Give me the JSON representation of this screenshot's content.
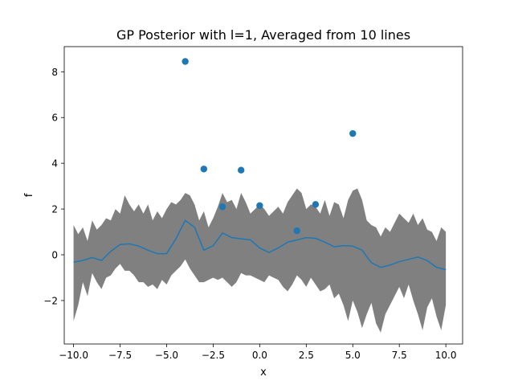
{
  "chart_data": {
    "type": "line",
    "title": "GP Posterior with l=1, Averaged from 10 lines",
    "xlabel": "x",
    "ylabel": "f",
    "xlim": [
      -10.5,
      10.9
    ],
    "ylim": [
      -3.9,
      9.1
    ],
    "x_ticks": [
      -10.0,
      -7.5,
      -5.0,
      -2.5,
      0.0,
      2.5,
      5.0,
      7.5,
      10.0
    ],
    "x_tick_labels": [
      "−10.0",
      "−7.5",
      "−5.0",
      "−2.5",
      "0.0",
      "2.5",
      "5.0",
      "7.5",
      "10.0"
    ],
    "y_ticks": [
      -2,
      0,
      2,
      4,
      6,
      8
    ],
    "y_tick_labels": [
      "−2",
      "0",
      "2",
      "4",
      "6",
      "8"
    ],
    "grid": false,
    "colors": {
      "mean_line": "#1f77b4",
      "observations": "#1f77b4",
      "band": "#808080"
    },
    "observations": {
      "x": [
        -4,
        -3,
        -2,
        -1,
        0,
        2,
        3,
        5
      ],
      "y": [
        8.45,
        3.75,
        2.1,
        3.7,
        2.15,
        1.05,
        2.2,
        5.3
      ]
    },
    "mean_line": {
      "x": [
        -10.0,
        -9.5,
        -9.0,
        -8.5,
        -8.0,
        -7.5,
        -7.0,
        -6.5,
        -6.0,
        -5.5,
        -5.0,
        -4.5,
        -4.0,
        -3.5,
        -3.0,
        -2.5,
        -2.0,
        -1.5,
        -1.0,
        -0.5,
        0.0,
        0.5,
        1.0,
        1.5,
        2.0,
        2.5,
        3.0,
        3.5,
        4.0,
        4.5,
        5.0,
        5.5,
        6.0,
        6.5,
        7.0,
        7.5,
        8.0,
        8.5,
        9.0,
        9.5,
        10.0
      ],
      "y": [
        -0.32,
        -0.25,
        -0.12,
        -0.25,
        0.15,
        0.45,
        0.48,
        0.38,
        0.2,
        0.05,
        0.05,
        0.7,
        1.5,
        1.2,
        0.2,
        0.4,
        0.95,
        0.75,
        0.7,
        0.65,
        0.3,
        0.1,
        0.3,
        0.55,
        0.65,
        0.75,
        0.72,
        0.55,
        0.35,
        0.4,
        0.38,
        0.2,
        -0.35,
        -0.55,
        -0.45,
        -0.3,
        -0.2,
        -0.1,
        -0.25,
        -0.55,
        -0.65
      ]
    },
    "band": {
      "x": [
        -10.0,
        -9.75,
        -9.5,
        -9.25,
        -9.0,
        -8.75,
        -8.5,
        -8.25,
        -8.0,
        -7.75,
        -7.5,
        -7.25,
        -7.0,
        -6.75,
        -6.5,
        -6.25,
        -6.0,
        -5.75,
        -5.5,
        -5.25,
        -5.0,
        -4.75,
        -4.5,
        -4.25,
        -4.0,
        -3.75,
        -3.5,
        -3.25,
        -3.0,
        -2.75,
        -2.5,
        -2.25,
        -2.0,
        -1.75,
        -1.5,
        -1.25,
        -1.0,
        -0.75,
        -0.5,
        -0.25,
        0.0,
        0.25,
        0.5,
        0.75,
        1.0,
        1.25,
        1.5,
        1.75,
        2.0,
        2.25,
        2.5,
        2.75,
        3.0,
        3.25,
        3.5,
        3.75,
        4.0,
        4.25,
        4.5,
        4.75,
        5.0,
        5.25,
        5.5,
        5.75,
        6.0,
        6.25,
        6.5,
        6.75,
        7.0,
        7.25,
        7.5,
        7.75,
        8.0,
        8.25,
        8.5,
        8.75,
        9.0,
        9.25,
        9.5,
        9.75,
        10.0
      ],
      "upper": [
        1.3,
        0.9,
        1.2,
        0.6,
        1.5,
        1.1,
        1.3,
        1.6,
        1.5,
        2.0,
        1.8,
        2.6,
        2.2,
        1.9,
        2.2,
        1.8,
        2.2,
        1.5,
        1.9,
        1.6,
        2.0,
        2.3,
        2.2,
        2.4,
        2.7,
        2.6,
        2.2,
        1.5,
        1.9,
        1.2,
        1.6,
        2.1,
        2.7,
        2.3,
        2.4,
        2.0,
        2.7,
        2.3,
        1.8,
        2.0,
        2.2,
        2.0,
        1.7,
        1.9,
        2.1,
        1.8,
        2.3,
        2.6,
        2.9,
        2.7,
        2.0,
        2.2,
        2.1,
        1.8,
        2.4,
        1.7,
        2.3,
        2.2,
        1.6,
        2.4,
        2.8,
        2.9,
        2.4,
        1.5,
        1.3,
        1.2,
        0.8,
        1.2,
        1.0,
        1.4,
        1.8,
        1.6,
        1.4,
        1.8,
        1.3,
        1.6,
        1.1,
        1.0,
        0.6,
        1.2,
        1.0
      ],
      "lower": [
        -2.9,
        -2.2,
        -1.2,
        -1.8,
        -0.8,
        -1.2,
        -1.5,
        -1.0,
        -0.9,
        -0.6,
        -0.4,
        -0.7,
        -0.7,
        -0.9,
        -1.2,
        -1.2,
        -1.4,
        -1.3,
        -1.5,
        -1.1,
        -1.3,
        -0.9,
        -0.7,
        -0.5,
        -0.2,
        -0.6,
        -0.9,
        -1.2,
        -1.2,
        -1.1,
        -1.0,
        -1.1,
        -1.0,
        -1.2,
        -1.4,
        -1.2,
        -0.8,
        -0.9,
        -0.9,
        -1.0,
        -1.1,
        -1.2,
        -0.9,
        -1.0,
        -1.1,
        -1.4,
        -1.6,
        -1.3,
        -0.9,
        -1.1,
        -1.4,
        -1.0,
        -1.3,
        -1.6,
        -1.5,
        -1.3,
        -1.9,
        -1.7,
        -2.2,
        -2.9,
        -2.0,
        -2.5,
        -3.2,
        -2.6,
        -2.1,
        -3.0,
        -3.4,
        -2.6,
        -2.2,
        -1.8,
        -1.4,
        -1.9,
        -1.3,
        -2.0,
        -2.6,
        -3.3,
        -2.3,
        -1.9,
        -2.7,
        -3.3,
        -2.2
      ]
    }
  }
}
